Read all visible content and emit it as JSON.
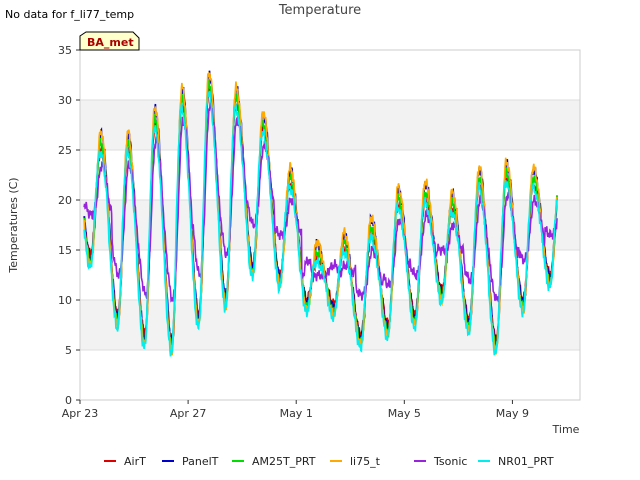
{
  "header": {
    "no_data_note": "No data for f_li77_temp"
  },
  "chart_data": {
    "type": "line",
    "title": "Temperature",
    "xlabel": "Time",
    "ylabel": "Temperatures (C)",
    "ylim": [
      0,
      35
    ],
    "yticks": [
      0,
      5,
      10,
      15,
      20,
      25,
      30,
      35
    ],
    "xlim_days": [
      0,
      18.5
    ],
    "xticks": [
      {
        "day": 0,
        "label": "Apr 23"
      },
      {
        "day": 4,
        "label": "Apr 27"
      },
      {
        "day": 8,
        "label": "May 1"
      },
      {
        "day": 12,
        "label": "May 5"
      },
      {
        "day": 16,
        "label": "May 9"
      }
    ],
    "grid": true,
    "shaded_bands": true,
    "legend_position": "bottom",
    "site_label": "BA_met",
    "daily_extremes": {
      "days": [
        0,
        1,
        2,
        3,
        4,
        5,
        6,
        7,
        8,
        9,
        10,
        11,
        12,
        13,
        14,
        15,
        16,
        17
      ],
      "max": [
        26,
        26,
        28.5,
        30.5,
        32,
        30.5,
        28,
        22.5,
        15,
        16,
        17.5,
        20.5,
        21,
        20,
        22.5,
        23,
        22.5,
        23
      ],
      "min": [
        14,
        8,
        6,
        5.5,
        8,
        10,
        13,
        12,
        9.5,
        9,
        6,
        7,
        8,
        10.5,
        7.5,
        5.5,
        9.5,
        12
      ]
    },
    "series": [
      {
        "name": "AirT",
        "color": "#dd0000",
        "max_offset": -1.0,
        "min_offset": 0.6,
        "phase": 0.0
      },
      {
        "name": "PanelT",
        "color": "#0000cc",
        "max_offset": 0.6,
        "min_offset": 0.2,
        "phase": 0.01
      },
      {
        "name": "AM25T_PRT",
        "color": "#00dd00",
        "max_offset": -0.3,
        "min_offset": -0.2,
        "phase": 0.0
      },
      {
        "name": "li75_t",
        "color": "#ffaa00",
        "max_offset": 0.8,
        "min_offset": -0.5,
        "phase": 0.0
      },
      {
        "name": "Tsonic",
        "color": "#9922dd",
        "max_offset": -2.5,
        "min_offset": 4.5,
        "phase": 0.04
      },
      {
        "name": "NR01_PRT",
        "color": "#00eeee",
        "max_offset": -1.2,
        "min_offset": -0.8,
        "phase": -0.02
      }
    ]
  }
}
